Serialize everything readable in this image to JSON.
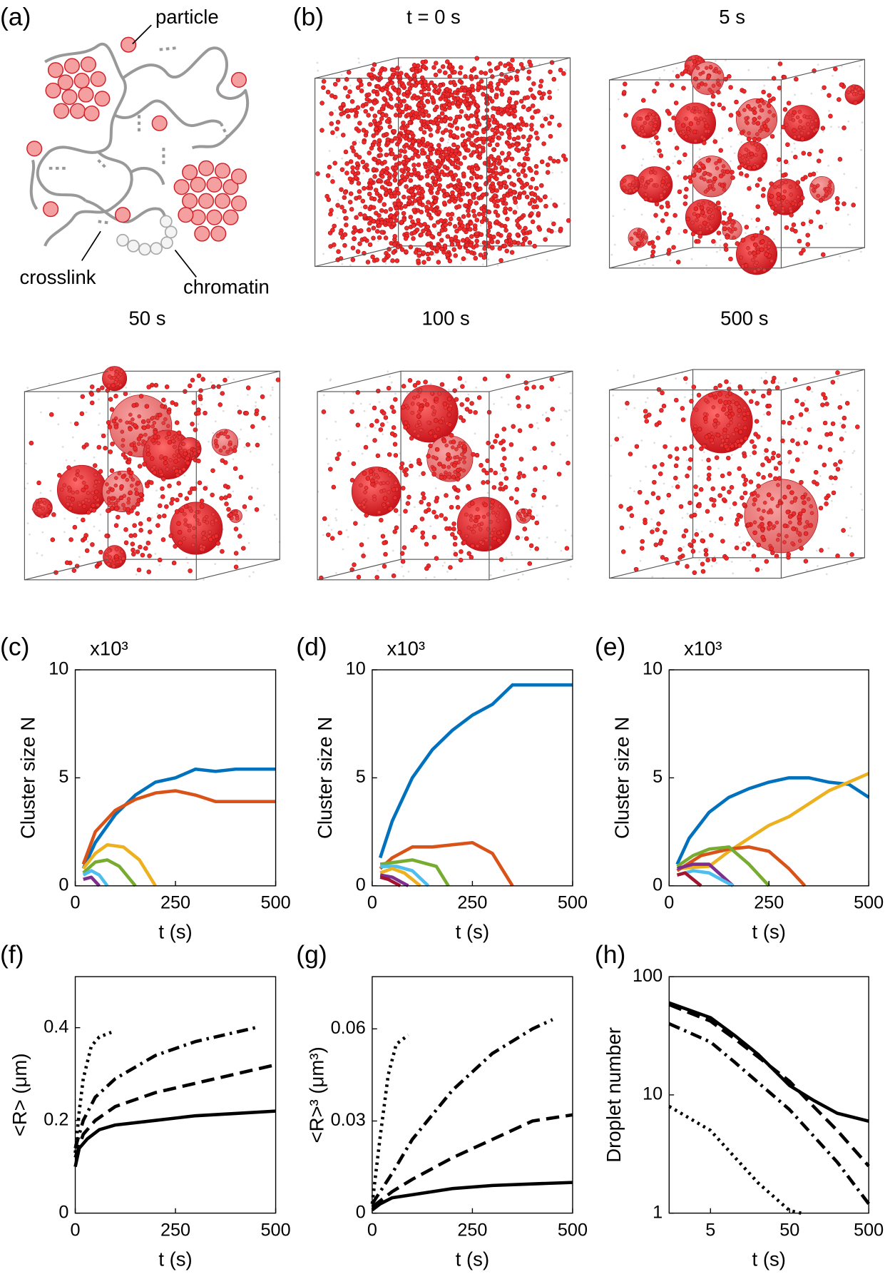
{
  "panel_labels": [
    "(a)",
    "(b)",
    "(c)",
    "(d)",
    "(e)",
    "(f)",
    "(g)",
    "(h)"
  ],
  "diagram": {
    "particle": "particle",
    "crosslink": "crosslink",
    "chromatin": "chromatin"
  },
  "snapshots": [
    "t = 0 s",
    "5 s",
    "50 s",
    "100 s",
    "500 s"
  ],
  "chart_data": [
    {
      "type": "line",
      "y_multiplier": "x10³",
      "ylabel": "Cluster size N",
      "xlabel": "t (s)",
      "xlim": [
        0,
        500
      ],
      "xticks": [
        0,
        250,
        500
      ],
      "ylim": [
        0,
        10
      ],
      "yticks": [
        0,
        5,
        10
      ],
      "series": [
        {
          "color": "#0072BD",
          "x": [
            20,
            50,
            100,
            150,
            200,
            250,
            300,
            350,
            400,
            450,
            500
          ],
          "values": [
            0.8,
            2.0,
            3.3,
            4.2,
            4.8,
            5.0,
            5.4,
            5.3,
            5.4,
            5.4,
            5.4
          ]
        },
        {
          "color": "#D95319",
          "x": [
            20,
            50,
            100,
            150,
            200,
            250,
            300,
            350,
            400,
            500
          ],
          "values": [
            1.0,
            2.5,
            3.5,
            4.0,
            4.3,
            4.4,
            4.2,
            3.9,
            3.9,
            3.9
          ]
        },
        {
          "color": "#EDB120",
          "x": [
            20,
            50,
            80,
            120,
            160,
            200
          ],
          "values": [
            0.8,
            1.5,
            1.9,
            1.8,
            1.2,
            0
          ]
        },
        {
          "color": "#77AC30",
          "x": [
            20,
            50,
            80,
            110,
            150
          ],
          "values": [
            0.6,
            1.1,
            1.2,
            0.9,
            0
          ]
        },
        {
          "color": "#4DBEEE",
          "x": [
            20,
            40,
            60,
            80
          ],
          "values": [
            0.5,
            0.7,
            0.5,
            0
          ]
        },
        {
          "color": "#7E2F8E",
          "x": [
            20,
            40,
            60
          ],
          "values": [
            0.3,
            0.4,
            0
          ]
        }
      ]
    },
    {
      "type": "line",
      "y_multiplier": "x10³",
      "ylabel": "Cluster size N",
      "xlabel": "t (s)",
      "xlim": [
        0,
        500
      ],
      "xticks": [
        0,
        250,
        500
      ],
      "ylim": [
        0,
        10
      ],
      "yticks": [
        0,
        5,
        10
      ],
      "series": [
        {
          "color": "#0072BD",
          "x": [
            20,
            50,
            100,
            150,
            200,
            250,
            300,
            350,
            400,
            450,
            500
          ],
          "values": [
            1.3,
            3.0,
            5.0,
            6.3,
            7.2,
            7.9,
            8.4,
            9.3,
            9.3,
            9.3,
            9.3
          ]
        },
        {
          "color": "#D95319",
          "x": [
            20,
            50,
            100,
            150,
            200,
            250,
            300,
            350
          ],
          "values": [
            0.8,
            1.3,
            1.8,
            1.8,
            1.9,
            2.0,
            1.5,
            0
          ]
        },
        {
          "color": "#77AC30",
          "x": [
            20,
            60,
            100,
            160,
            190
          ],
          "values": [
            1.0,
            1.1,
            1.2,
            0.9,
            0
          ]
        },
        {
          "color": "#4DBEEE",
          "x": [
            20,
            60,
            100,
            140
          ],
          "values": [
            0.9,
            0.9,
            0.7,
            0
          ]
        },
        {
          "color": "#EDB120",
          "x": [
            20,
            50,
            80,
            120
          ],
          "values": [
            0.6,
            0.8,
            0.6,
            0
          ]
        },
        {
          "color": "#7E2F8E",
          "x": [
            20,
            50,
            90
          ],
          "values": [
            0.5,
            0.4,
            0
          ]
        },
        {
          "color": "#A2142F",
          "x": [
            20,
            40,
            70
          ],
          "values": [
            0.4,
            0.3,
            0
          ]
        }
      ]
    },
    {
      "type": "line",
      "y_multiplier": "x10³",
      "ylabel": "Cluster size N",
      "xlabel": "t (s)",
      "xlim": [
        0,
        500
      ],
      "xticks": [
        0,
        250,
        500
      ],
      "ylim": [
        0,
        10
      ],
      "yticks": [
        0,
        5,
        10
      ],
      "series": [
        {
          "color": "#0072BD",
          "x": [
            20,
            50,
            100,
            150,
            200,
            250,
            300,
            350,
            400,
            450,
            500
          ],
          "values": [
            1.0,
            2.2,
            3.4,
            4.1,
            4.5,
            4.8,
            5.0,
            5.0,
            4.8,
            4.7,
            4.1
          ]
        },
        {
          "color": "#EDB120",
          "x": [
            20,
            100,
            150,
            200,
            250,
            300,
            350,
            400,
            450,
            500
          ],
          "values": [
            0.8,
            0.9,
            1.6,
            2.2,
            2.8,
            3.2,
            3.8,
            4.4,
            4.8,
            5.2
          ]
        },
        {
          "color": "#D95319",
          "x": [
            20,
            80,
            150,
            200,
            250,
            300,
            340
          ],
          "values": [
            0.7,
            1.4,
            1.7,
            1.8,
            1.6,
            0.8,
            0
          ]
        },
        {
          "color": "#77AC30",
          "x": [
            20,
            60,
            100,
            150,
            200,
            250
          ],
          "values": [
            0.9,
            1.4,
            1.7,
            1.8,
            1.0,
            0
          ]
        },
        {
          "color": "#7E2F8E",
          "x": [
            20,
            60,
            100,
            160
          ],
          "values": [
            0.8,
            1.0,
            1.0,
            0
          ]
        },
        {
          "color": "#4DBEEE",
          "x": [
            20,
            60,
            100,
            160
          ],
          "values": [
            0.5,
            0.7,
            0.6,
            0
          ]
        },
        {
          "color": "#A2142F",
          "x": [
            20,
            40,
            80
          ],
          "values": [
            0.5,
            0.6,
            0
          ]
        }
      ]
    },
    {
      "type": "line",
      "ylabel": "<R> (μm)",
      "xlabel": "t (s)",
      "xlim": [
        0,
        500
      ],
      "xticks": [
        0,
        250,
        500
      ],
      "ylim": [
        0,
        0.51
      ],
      "yticks": [
        0,
        0.2,
        0.4
      ],
      "series": [
        {
          "color": "#000000",
          "line_style": "solid",
          "x": [
            0,
            10,
            30,
            60,
            100,
            200,
            300,
            400,
            500
          ],
          "values": [
            0.1,
            0.14,
            0.16,
            0.18,
            0.19,
            0.2,
            0.21,
            0.215,
            0.22
          ]
        },
        {
          "color": "#000000",
          "line_style": "dashed",
          "x": [
            0,
            20,
            50,
            100,
            200,
            300,
            400,
            500
          ],
          "values": [
            0.12,
            0.17,
            0.2,
            0.23,
            0.26,
            0.28,
            0.3,
            0.32
          ]
        },
        {
          "color": "#000000",
          "line_style": "dashdot",
          "x": [
            0,
            20,
            50,
            100,
            200,
            300,
            400,
            450
          ],
          "values": [
            0.14,
            0.2,
            0.25,
            0.29,
            0.34,
            0.37,
            0.39,
            0.4
          ]
        },
        {
          "color": "#000000",
          "line_style": "dotted",
          "x": [
            0,
            10,
            20,
            40,
            60,
            90
          ],
          "values": [
            0.13,
            0.22,
            0.29,
            0.36,
            0.38,
            0.39
          ]
        }
      ]
    },
    {
      "type": "line",
      "ylabel": "<R>³ (μm³)",
      "xlabel": "t (s)",
      "xlim": [
        0,
        500
      ],
      "xticks": [
        0,
        250,
        500
      ],
      "ylim": [
        0,
        0.077
      ],
      "yticks": [
        0,
        0.03,
        0.06
      ],
      "series": [
        {
          "color": "#000000",
          "line_style": "solid",
          "x": [
            0,
            20,
            50,
            100,
            200,
            300,
            400,
            500
          ],
          "values": [
            0.001,
            0.003,
            0.005,
            0.006,
            0.008,
            0.009,
            0.0095,
            0.01
          ]
        },
        {
          "color": "#000000",
          "line_style": "dashed",
          "x": [
            0,
            50,
            100,
            200,
            300,
            400,
            500
          ],
          "values": [
            0.002,
            0.007,
            0.011,
            0.018,
            0.024,
            0.03,
            0.032
          ]
        },
        {
          "color": "#000000",
          "line_style": "dashdot",
          "x": [
            0,
            50,
            100,
            200,
            300,
            400,
            450
          ],
          "values": [
            0.003,
            0.013,
            0.024,
            0.04,
            0.052,
            0.06,
            0.063
          ]
        },
        {
          "color": "#000000",
          "line_style": "dotted",
          "x": [
            0,
            20,
            40,
            60,
            90
          ],
          "values": [
            0.003,
            0.025,
            0.045,
            0.055,
            0.058
          ]
        }
      ]
    },
    {
      "type": "line",
      "ylabel": "Droplet number",
      "xlabel": "t (s)",
      "xscale": "log",
      "yscale": "log",
      "xlim": [
        1.5,
        500
      ],
      "xticks": [
        5,
        50,
        500
      ],
      "ylim": [
        1,
        100
      ],
      "yticks": [
        1,
        10,
        100
      ],
      "series": [
        {
          "color": "#000000",
          "line_style": "solid",
          "x": [
            1.5,
            5,
            10,
            20,
            50,
            100,
            200,
            500
          ],
          "values": [
            60,
            45,
            32,
            22,
            12,
            9,
            7,
            6
          ]
        },
        {
          "color": "#000000",
          "line_style": "dashed",
          "x": [
            1.5,
            5,
            10,
            50,
            100,
            200,
            500
          ],
          "values": [
            58,
            42,
            30,
            13,
            8,
            5,
            2.5
          ]
        },
        {
          "color": "#000000",
          "line_style": "dashdot",
          "x": [
            1.5,
            5,
            10,
            50,
            100,
            200,
            500
          ],
          "values": [
            40,
            28,
            19,
            7.5,
            4.5,
            2.7,
            1.2
          ]
        },
        {
          "color": "#000000",
          "line_style": "dotted",
          "x": [
            1.5,
            5,
            10,
            20,
            50,
            70
          ],
          "values": [
            8,
            5,
            3,
            1.8,
            1.05,
            1
          ]
        }
      ]
    }
  ]
}
